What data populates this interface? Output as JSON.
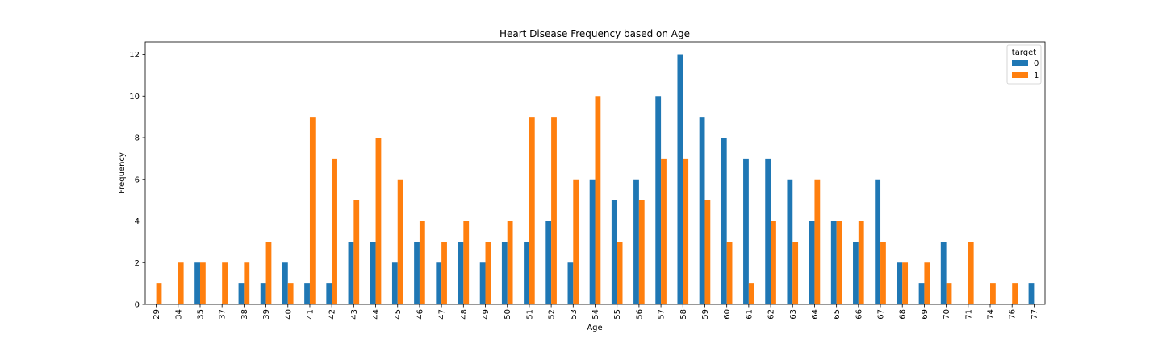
{
  "chart_data": {
    "type": "bar",
    "title": "Heart Disease Frequency based on Age",
    "xlabel": "Age",
    "ylabel": "Frequency",
    "ylim": [
      0,
      12.6
    ],
    "yticks": [
      "0",
      "2",
      "4",
      "6",
      "8",
      "10",
      "12"
    ],
    "grid": false,
    "legend": {
      "title": "target",
      "placement": "top-right"
    },
    "categories": [
      "29",
      "34",
      "35",
      "37",
      "38",
      "39",
      "40",
      "41",
      "42",
      "43",
      "44",
      "45",
      "46",
      "47",
      "48",
      "49",
      "50",
      "51",
      "52",
      "53",
      "54",
      "55",
      "56",
      "57",
      "58",
      "59",
      "60",
      "61",
      "62",
      "63",
      "64",
      "65",
      "66",
      "67",
      "68",
      "69",
      "70",
      "71",
      "74",
      "76",
      "77"
    ],
    "series": [
      {
        "name": "0",
        "color": "#1f77b4",
        "values": [
          0,
          0,
          2,
          0,
          1,
          1,
          2,
          1,
          1,
          3,
          3,
          2,
          3,
          2,
          3,
          2,
          3,
          3,
          4,
          2,
          6,
          5,
          6,
          10,
          12,
          9,
          8,
          7,
          7,
          6,
          4,
          4,
          3,
          6,
          2,
          1,
          3,
          0,
          0,
          0,
          1
        ]
      },
      {
        "name": "1",
        "color": "#ff7f0e",
        "values": [
          1,
          2,
          2,
          2,
          2,
          3,
          1,
          9,
          7,
          5,
          8,
          6,
          4,
          3,
          4,
          3,
          4,
          9,
          9,
          6,
          10,
          3,
          5,
          7,
          7,
          5,
          3,
          1,
          4,
          3,
          6,
          4,
          4,
          3,
          2,
          2,
          1,
          3,
          1,
          1,
          0
        ]
      }
    ]
  }
}
